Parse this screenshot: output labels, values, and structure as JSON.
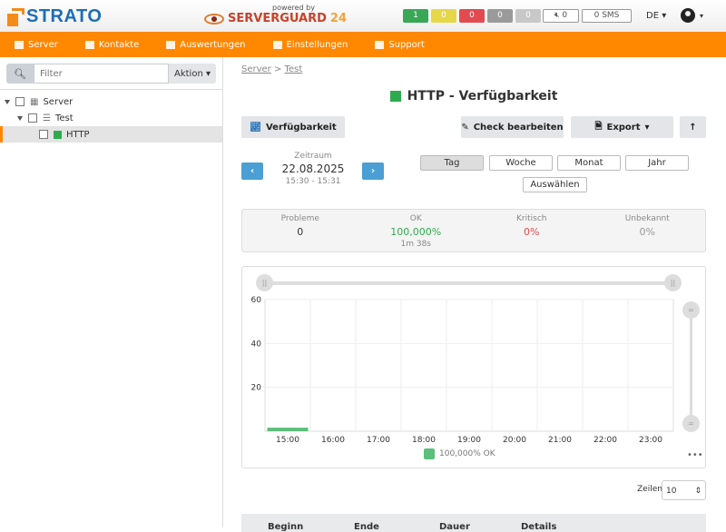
{
  "header": {
    "brand": "STRATO",
    "powered_by": "powered by",
    "product": "SERVERGUARD",
    "product_suffix": "24",
    "status_badges": [
      {
        "value": "1",
        "color": "#3aa757"
      },
      {
        "value": "0",
        "color": "#e6d64a"
      },
      {
        "value": "0",
        "color": "#e04b4f"
      },
      {
        "value": "0",
        "color": "#9a9a9a"
      },
      {
        "value": "0",
        "color": "#c8c8c8"
      }
    ],
    "mute_count": "0",
    "sms": "0 SMS",
    "language": "DE"
  },
  "nav": [
    {
      "label": "Server",
      "icon": "server-icon"
    },
    {
      "label": "Kontakte",
      "icon": "users-icon"
    },
    {
      "label": "Auswertungen",
      "icon": "chart-icon"
    },
    {
      "label": "Einstellungen",
      "icon": "gear-icon"
    },
    {
      "label": "Support",
      "icon": "info-icon"
    }
  ],
  "sidebar": {
    "filter_placeholder": "Filter",
    "action": "Aktion",
    "tree": [
      {
        "label": "Server"
      },
      {
        "label": "Test"
      },
      {
        "label": "HTTP",
        "status_color": "#2eab4e"
      }
    ]
  },
  "main": {
    "breadcrumb": [
      "Server",
      "Test"
    ],
    "title": "HTTP - Verfügbarkeit",
    "title_color": "#2eab4e",
    "buttons": {
      "availability": "Verfügbarkeit",
      "edit": "Check bearbeiten",
      "export": "Export"
    },
    "period": {
      "label": "Zeitraum",
      "date": "22.08.2025",
      "time": "15:30 - 15:31"
    },
    "tabs": [
      "Tag",
      "Woche",
      "Monat",
      "Jahr"
    ],
    "active_tab": "Tag",
    "select": "Auswählen",
    "stats": [
      {
        "label": "Probleme",
        "value": "0",
        "color": "#333333"
      },
      {
        "label": "OK",
        "value": "100,000%",
        "sub": "1m 38s",
        "color": "#2eab4e"
      },
      {
        "label": "Kritisch",
        "value": "0%",
        "color": "#e04b4f"
      },
      {
        "label": "Unbekannt",
        "value": "0%",
        "color": "#999999"
      }
    ],
    "rows_label": "Zeilen",
    "rows_value": "10",
    "table_headers": [
      "Beginn",
      "Ende",
      "Dauer",
      "Details"
    ]
  },
  "chart_data": {
    "type": "bar",
    "x_ticks": [
      "15:00",
      "16:00",
      "17:00",
      "18:00",
      "19:00",
      "20:00",
      "21:00",
      "22:00",
      "23:00"
    ],
    "y_ticks": [
      20,
      40,
      60
    ],
    "ylim": [
      0,
      60
    ],
    "series": [
      {
        "name": "100,000% OK",
        "color": "#5cbf7a",
        "categories": [
          "15:00"
        ],
        "values": [
          1.63
        ]
      }
    ],
    "grid": true,
    "legend": "bottom"
  }
}
